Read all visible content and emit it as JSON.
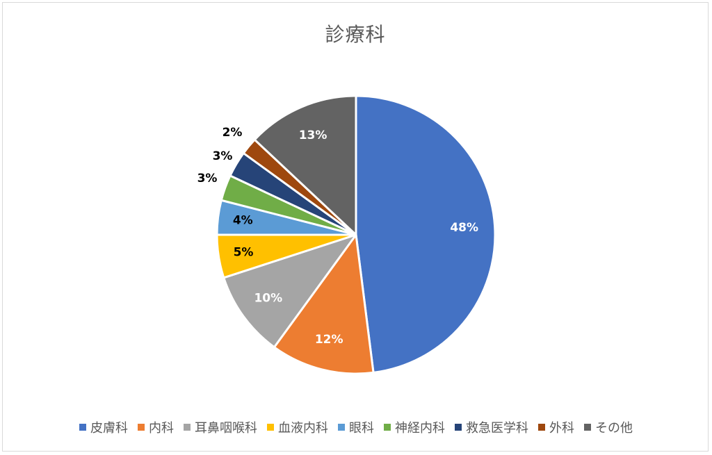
{
  "chart_data": {
    "type": "pie",
    "title": "診療科",
    "categories": [
      "皮膚科",
      "内科",
      "耳鼻咽喉科",
      "血液内科",
      "眼科",
      "神経内科",
      "救急医学科",
      "外科",
      "その他"
    ],
    "values": [
      48,
      12,
      10,
      5,
      4,
      3,
      3,
      2,
      13
    ],
    "labels": [
      "48%",
      "12%",
      "10%",
      "5%",
      "4%",
      "3%",
      "3%",
      "2%",
      "13%"
    ],
    "colors": [
      "#4472C4",
      "#ED7D31",
      "#A5A5A5",
      "#FFC000",
      "#5B9BD5",
      "#70AD47",
      "#264478",
      "#9E480E",
      "#636363"
    ],
    "legend_position": "bottom",
    "label_position": "inside-end; small slices outside"
  }
}
